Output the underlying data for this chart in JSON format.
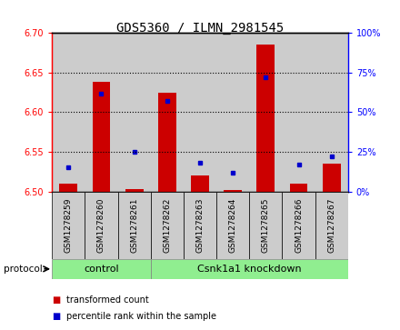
{
  "title": "GDS5360 / ILMN_2981545",
  "samples": [
    "GSM1278259",
    "GSM1278260",
    "GSM1278261",
    "GSM1278262",
    "GSM1278263",
    "GSM1278264",
    "GSM1278265",
    "GSM1278266",
    "GSM1278267"
  ],
  "red_values": [
    6.51,
    6.638,
    6.503,
    6.625,
    6.52,
    6.502,
    6.685,
    6.51,
    6.535
  ],
  "blue_values_pct": [
    15,
    62,
    25,
    57,
    18,
    12,
    72,
    17,
    22
  ],
  "ylim": [
    6.5,
    6.7
  ],
  "yticks": [
    6.5,
    6.55,
    6.6,
    6.65,
    6.7
  ],
  "y2lim": [
    0,
    100
  ],
  "y2ticks": [
    0,
    25,
    50,
    75,
    100
  ],
  "y2ticklabels": [
    "0%",
    "25%",
    "50%",
    "75%",
    "100%"
  ],
  "control_label": "control",
  "knockdown_label": "Csnk1a1 knockdown",
  "protocol_label": "protocol",
  "bar_color": "#cc0000",
  "dot_color": "#0000cc",
  "bar_width": 0.55,
  "group_color": "#90ee90",
  "bg_color": "#cccccc",
  "legend_red_label": "transformed count",
  "legend_blue_label": "percentile rank within the sample",
  "n_control": 3,
  "n_knockdown": 6
}
